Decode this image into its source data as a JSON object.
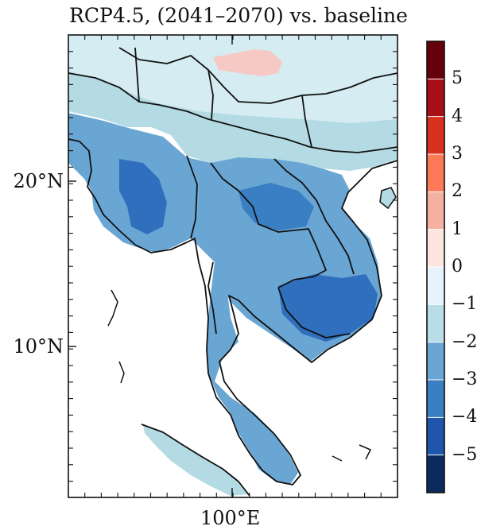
{
  "title": "RCP4.5, (2041–2070) vs. baseline",
  "lat_labels": [
    "20°N",
    "10°N"
  ],
  "lon_labels": [
    "100°E"
  ],
  "colorbar": {
    "labels": [
      "5",
      "4",
      "3",
      "2",
      "1",
      "0",
      "−1",
      "−2",
      "−3",
      "−4",
      "−5"
    ],
    "colors": [
      "#67000d",
      "#a50f15",
      "#d7301f",
      "#fc7a57",
      "#f4b0a0",
      "#fde4e1",
      "#e6f3fa",
      "#b8dde6",
      "#6aa6d4",
      "#3a7ec3",
      "#1f55ad",
      "#0d2a5c"
    ]
  },
  "palette": {
    "light": "#d6ecf3",
    "pale_cyan": "#b4dbe3",
    "mid": "#6aa6d4",
    "dark": "#2f6fbd",
    "pink": "#f7c9c4",
    "border": "#111111"
  }
}
